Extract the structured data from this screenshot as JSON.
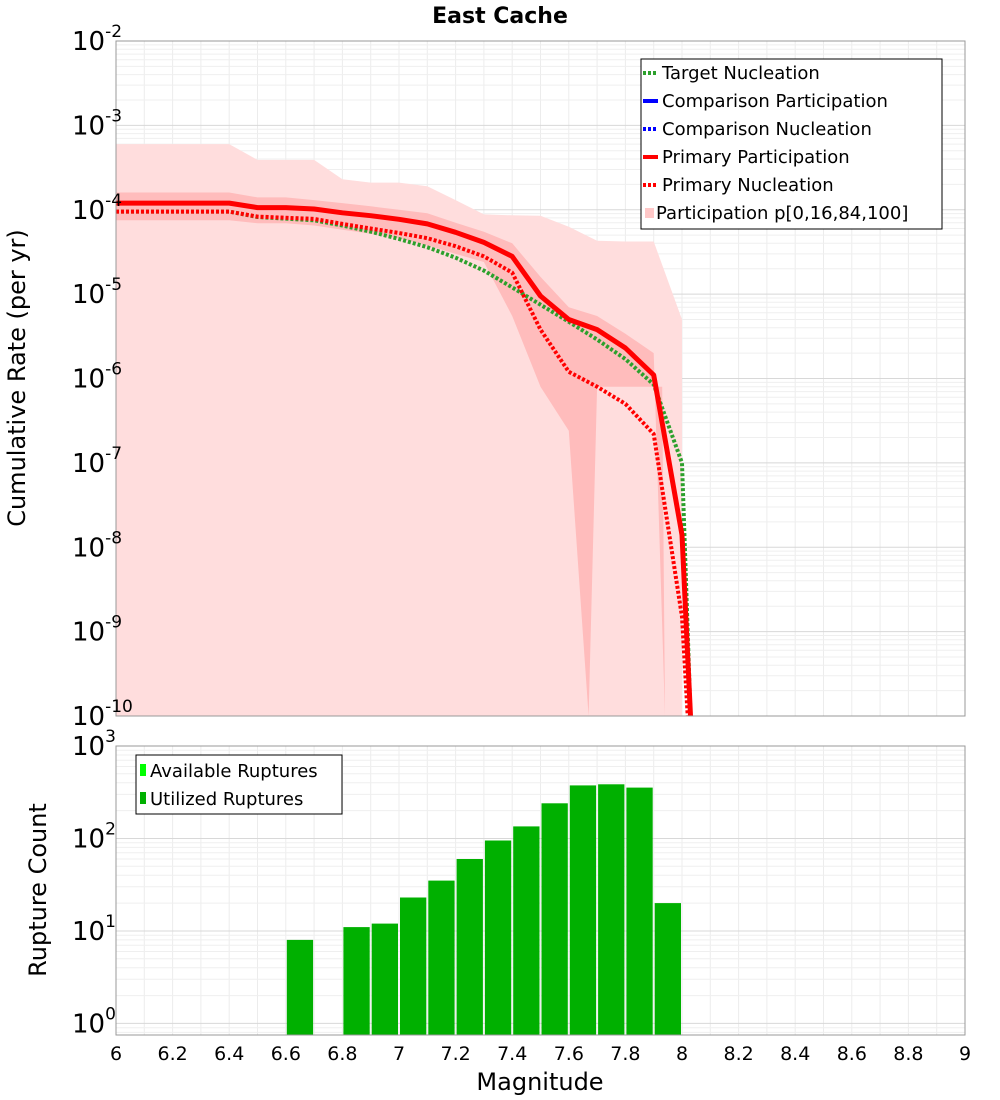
{
  "chart_data": [
    {
      "type": "line",
      "title": "East Cache",
      "xlabel": "",
      "ylabel": "Cumulative Rate (per yr)",
      "xlim": [
        6,
        9
      ],
      "ylim": [
        1e-10,
        0.01
      ],
      "yscale": "log",
      "y_tick_exponents": [
        -2,
        -3,
        -4,
        -5,
        -6,
        -7,
        -8,
        -9,
        -10
      ],
      "y_tick_base": "10",
      "grid": true,
      "legend_position": "top-right",
      "legend": [
        {
          "name": "Target Nucleation",
          "color": "#2ca02c",
          "style": "dotted"
        },
        {
          "name": "Comparison Participation",
          "color": "#0000ff",
          "style": "solid"
        },
        {
          "name": " Comparison Nucleation",
          "color": "#0000ff",
          "style": "dotted"
        },
        {
          "name": "Primary Participation",
          "color": "#ff0000",
          "style": "solid"
        },
        {
          "name": " Primary Nucleation",
          "color": "#ff0000",
          "style": "dotted"
        },
        {
          "name": "Participation p[0,16,84,100]",
          "color": "#ffc8c8",
          "style": "fill"
        }
      ],
      "series": [
        {
          "name": "Target Nucleation",
          "color": "#2ca02c",
          "style": "dotted",
          "x": [
            6.0,
            6.4,
            6.5,
            6.7,
            6.8,
            6.9,
            7.0,
            7.1,
            7.2,
            7.3,
            7.4,
            7.5,
            7.6,
            7.7,
            7.8,
            7.9,
            8.0,
            8.02,
            8.03
          ],
          "y": [
            9.5e-05,
            9.5e-05,
            8.2e-05,
            7.5e-05,
            6.5e-05,
            5.5e-05,
            4.5e-05,
            3.6e-05,
            2.7e-05,
            1.9e-05,
            1.2e-05,
            7.5e-06,
            4.7e-06,
            2.9e-06,
            1.7e-06,
            8.5e-07,
            1e-07,
            1e-09,
            1e-10
          ]
        },
        {
          "name": "Primary Participation",
          "color": "#ff0000",
          "style": "solid",
          "x": [
            6.0,
            6.4,
            6.5,
            6.6,
            6.7,
            6.8,
            6.9,
            7.0,
            7.1,
            7.2,
            7.3,
            7.4,
            7.5,
            7.6,
            7.7,
            7.8,
            7.9,
            8.0,
            8.03
          ],
          "y": [
            0.00012,
            0.00012,
            0.000106,
            0.000106,
            0.000102,
            9.2e-05,
            8.5e-05,
            7.7e-05,
            6.8e-05,
            5.4e-05,
            4.1e-05,
            2.8e-05,
            9.5e-06,
            5e-06,
            3.8e-06,
            2.3e-06,
            1.1e-06,
            1.4e-08,
            1e-10
          ]
        },
        {
          "name": "Primary Nucleation",
          "color": "#ff0000",
          "style": "dotted",
          "x": [
            6.0,
            6.4,
            6.5,
            6.7,
            6.8,
            6.9,
            7.0,
            7.1,
            7.2,
            7.3,
            7.4,
            7.5,
            7.6,
            7.7,
            7.8,
            7.9,
            8.0,
            8.02
          ],
          "y": [
            9.5e-05,
            9.5e-05,
            8.3e-05,
            7.8e-05,
            6.8e-05,
            6e-05,
            5.3e-05,
            4.6e-05,
            3.7e-05,
            2.8e-05,
            1.8e-05,
            3.8e-06,
            1.2e-06,
            8e-07,
            5e-07,
            2.2e-07,
            1.5e-09,
            1e-10
          ]
        }
      ],
      "bands": [
        {
          "name": "p0-p100",
          "color": "#ffdddd",
          "x": [
            6.0,
            6.4,
            6.5,
            6.6,
            6.7,
            6.8,
            6.9,
            7.0,
            7.1,
            7.2,
            7.3,
            7.4,
            7.5,
            7.6,
            7.7,
            7.8,
            7.9,
            8.0,
            8.0,
            6.0
          ],
          "upper": [
            0.0006,
            0.0006,
            0.00039,
            0.00039,
            0.00039,
            0.00023,
            0.00021,
            0.00021,
            0.00019,
            0.00013,
            8.8e-05,
            8.6e-05,
            8.5e-05,
            6.3e-05,
            4.3e-05,
            4.2e-05,
            4.2e-05,
            5e-06,
            1e-10,
            1e-10
          ]
        },
        {
          "name": "p16-p84",
          "color": "#ffbcbc",
          "x_upper": [
            6.0,
            6.4,
            6.5,
            6.6,
            6.7,
            6.8,
            6.9,
            7.0,
            7.1,
            7.2,
            7.3,
            7.4,
            7.5,
            7.6,
            7.7,
            7.8,
            7.9
          ],
          "upper": [
            0.00016,
            0.00016,
            0.00014,
            0.00014,
            0.00013,
            0.00012,
            0.00011,
            0.0001,
            9.1e-05,
            7e-05,
            5.5e-05,
            4e-05,
            1.6e-05,
            7e-06,
            5.5e-06,
            3.4e-06,
            2e-06
          ],
          "x_lower": [
            7.94,
            7.93,
            7.85,
            7.7,
            7.67,
            7.6,
            7.5,
            7.4,
            7.3,
            7.2,
            7.1,
            7.0,
            6.9,
            6.8,
            6.7,
            6.6,
            6.5,
            6.4,
            6.0
          ],
          "lower": [
            1e-10,
            8e-07,
            8e-07,
            8e-07,
            1e-10,
            2.4e-07,
            8e-07,
            5.5e-06,
            2.4e-05,
            3e-05,
            3.8e-05,
            4.6e-05,
            5.2e-05,
            5.8e-05,
            6.5e-05,
            6.9e-05,
            6.9e-05,
            7.5e-05,
            7.5e-05
          ]
        }
      ]
    },
    {
      "type": "bar",
      "title": "",
      "xlabel": "Magnitude",
      "ylabel": "Rupture Count",
      "xlim": [
        6,
        9
      ],
      "x_ticks": [
        "6",
        "6.2",
        "6.4",
        "6.6",
        "6.8",
        "7",
        "7.2",
        "7.4",
        "7.6",
        "7.8",
        "8",
        "8.2",
        "8.4",
        "8.6",
        "8.8",
        "9"
      ],
      "ylim": [
        0.75,
        1000
      ],
      "yscale": "log",
      "y_tick_exponents": [
        0,
        1,
        2,
        3
      ],
      "y_tick_base": "10",
      "grid": true,
      "legend_position": "top-left",
      "legend": [
        {
          "name": "Available Ruptures",
          "color": "#00ff00"
        },
        {
          "name": "Utilized Ruptures",
          "color": "#00b000"
        }
      ],
      "bar_width": 0.1,
      "categories": [
        6.6,
        6.8,
        6.9,
        7.0,
        7.1,
        7.2,
        7.3,
        7.4,
        7.5,
        7.6,
        7.7,
        7.8,
        7.9
      ],
      "series": [
        {
          "name": "Available Ruptures",
          "color": "#00ff00",
          "values": [
            8,
            11,
            12,
            23,
            35,
            60,
            95,
            135,
            240,
            375,
            385,
            355,
            20
          ]
        },
        {
          "name": "Utilized Ruptures",
          "color": "#00b000",
          "values": [
            8,
            11,
            12,
            23,
            35,
            60,
            95,
            135,
            240,
            375,
            385,
            355,
            20
          ]
        }
      ]
    }
  ]
}
